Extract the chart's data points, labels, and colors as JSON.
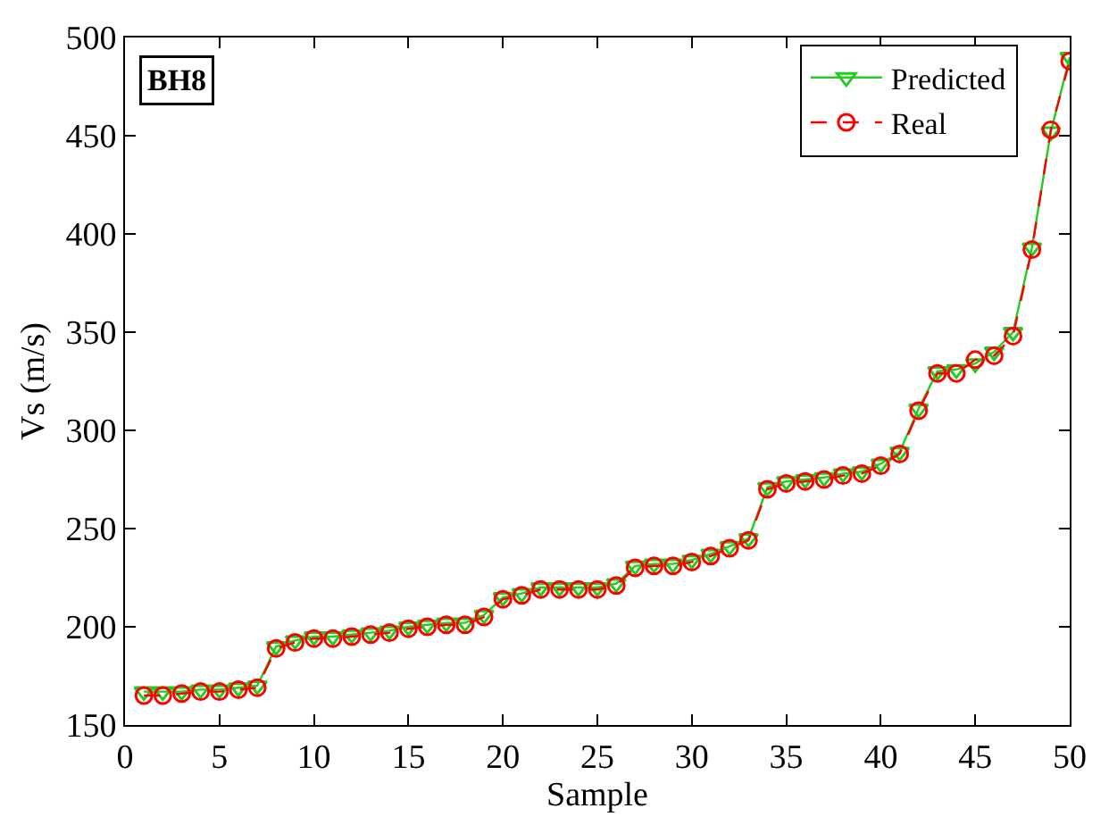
{
  "chart_data": {
    "type": "line",
    "xlabel": "Sample",
    "ylabel": "Vs (m/s)",
    "annotations": [
      "BH8"
    ],
    "x": [
      1,
      2,
      3,
      4,
      5,
      6,
      7,
      8,
      9,
      10,
      11,
      12,
      13,
      14,
      15,
      16,
      17,
      18,
      19,
      20,
      21,
      22,
      23,
      24,
      25,
      26,
      27,
      28,
      29,
      30,
      31,
      32,
      33,
      34,
      35,
      36,
      37,
      38,
      39,
      40,
      41,
      42,
      43,
      44,
      45,
      46,
      47,
      48,
      49,
      50
    ],
    "series": [
      {
        "name": "Predicted",
        "color": "#22cc22",
        "marker": "triangle",
        "line_style": "solid",
        "values": [
          167,
          167,
          167,
          168,
          168,
          169,
          170,
          190,
          193,
          195,
          195,
          196,
          197,
          198,
          200,
          201,
          202,
          202,
          206,
          215,
          217,
          220,
          220,
          220,
          220,
          222,
          231,
          232,
          232,
          234,
          237,
          241,
          245,
          271,
          274,
          275,
          276,
          278,
          279,
          283,
          289,
          311,
          330,
          331,
          334,
          340,
          350,
          393,
          452,
          490
        ]
      },
      {
        "name": "Real",
        "color": "#ff0000",
        "marker": "circle",
        "line_style": "dashed",
        "values": [
          165,
          165,
          166,
          167,
          167,
          168,
          169,
          189,
          192,
          194,
          194,
          195,
          196,
          197,
          199,
          200,
          201,
          201,
          205,
          214,
          216,
          219,
          219,
          219,
          219,
          221,
          230,
          231,
          231,
          233,
          236,
          240,
          244,
          270,
          273,
          274,
          275,
          277,
          278,
          282,
          288,
          310,
          329,
          329,
          336,
          338,
          348,
          392,
          453,
          488
        ]
      }
    ],
    "xlim": [
      0,
      50
    ],
    "xticks": [
      0,
      5,
      10,
      15,
      20,
      25,
      30,
      35,
      40,
      45,
      50
    ],
    "ylim": [
      150,
      500
    ],
    "yticks": [
      150,
      200,
      250,
      300,
      350,
      400,
      450,
      500
    ],
    "legend": "top right"
  }
}
